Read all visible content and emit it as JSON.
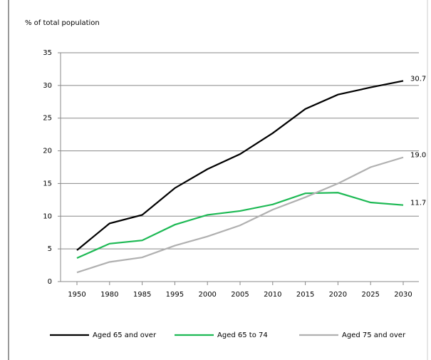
{
  "chart_data": {
    "type": "line",
    "title": "% of total population",
    "categories": [
      "1950",
      "1980",
      "1985",
      "1995",
      "2000",
      "2005",
      "2010",
      "2015",
      "2020",
      "2025",
      "2030"
    ],
    "series": [
      {
        "name": "Aged 65  and over",
        "color": "#000000",
        "values": [
          4.8,
          8.9,
          10.2,
          14.3,
          17.2,
          19.5,
          22.7,
          26.4,
          28.6,
          29.7,
          30.7
        ],
        "value_labels": [
          null,
          null,
          null,
          null,
          null,
          null,
          null,
          null,
          null,
          null,
          "30.7"
        ]
      },
      {
        "name": "Aged 65 to 74",
        "color": "#1db954",
        "values": [
          3.6,
          5.8,
          6.3,
          8.7,
          10.2,
          10.8,
          11.8,
          13.5,
          13.6,
          12.1,
          11.7
        ],
        "value_labels": [
          null,
          null,
          null,
          null,
          null,
          null,
          null,
          null,
          null,
          null,
          "11.7"
        ]
      },
      {
        "name": "Aged 75 and over",
        "color": "#b0b0b0",
        "values": [
          1.4,
          3.0,
          3.7,
          5.5,
          6.9,
          8.6,
          11.0,
          12.9,
          15.0,
          17.5,
          19.0
        ],
        "value_labels": [
          null,
          null,
          null,
          null,
          null,
          null,
          null,
          null,
          null,
          null,
          "19.0"
        ]
      }
    ],
    "ylim": [
      0,
      35
    ],
    "yticks": [
      0,
      5,
      10,
      15,
      20,
      25,
      30,
      35
    ],
    "grid": true,
    "legend": "bottom"
  }
}
